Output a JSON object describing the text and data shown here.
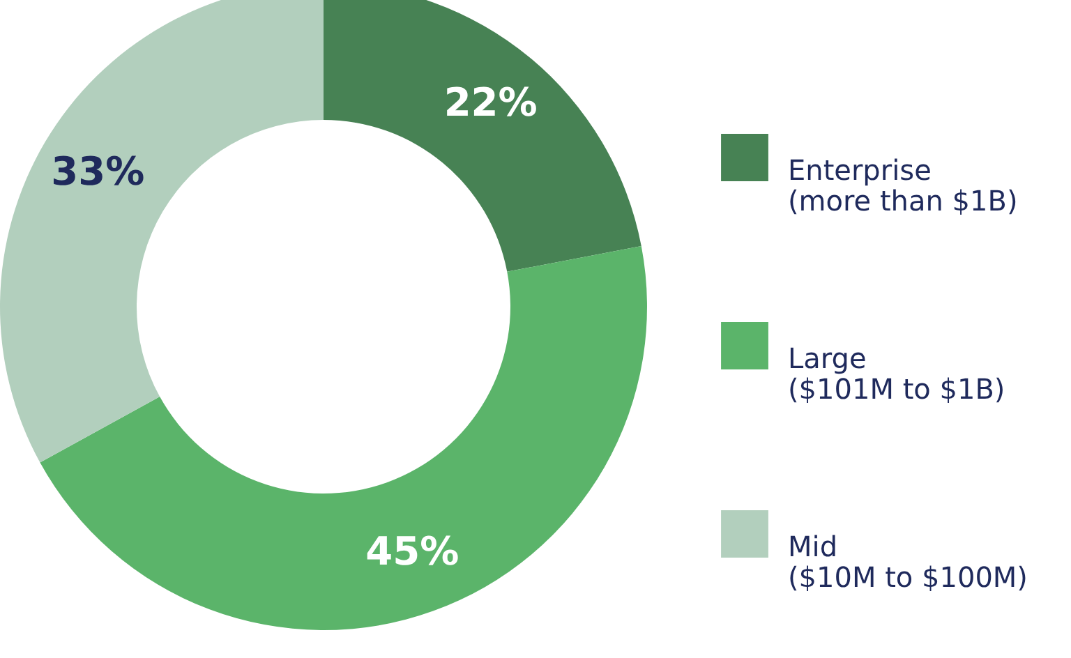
{
  "chart_data": {
    "type": "donut",
    "categories": [
      "Enterprise\n(more than $1B)",
      "Large\n($101M to $1B)",
      "Mid\n($10M to $100M)"
    ],
    "values": [
      22,
      45,
      33
    ],
    "colors": [
      "#478254",
      "#5bb46a",
      "#b2cfbd"
    ],
    "value_labels": [
      "22%",
      "45%",
      "33%"
    ],
    "legend": "right"
  }
}
